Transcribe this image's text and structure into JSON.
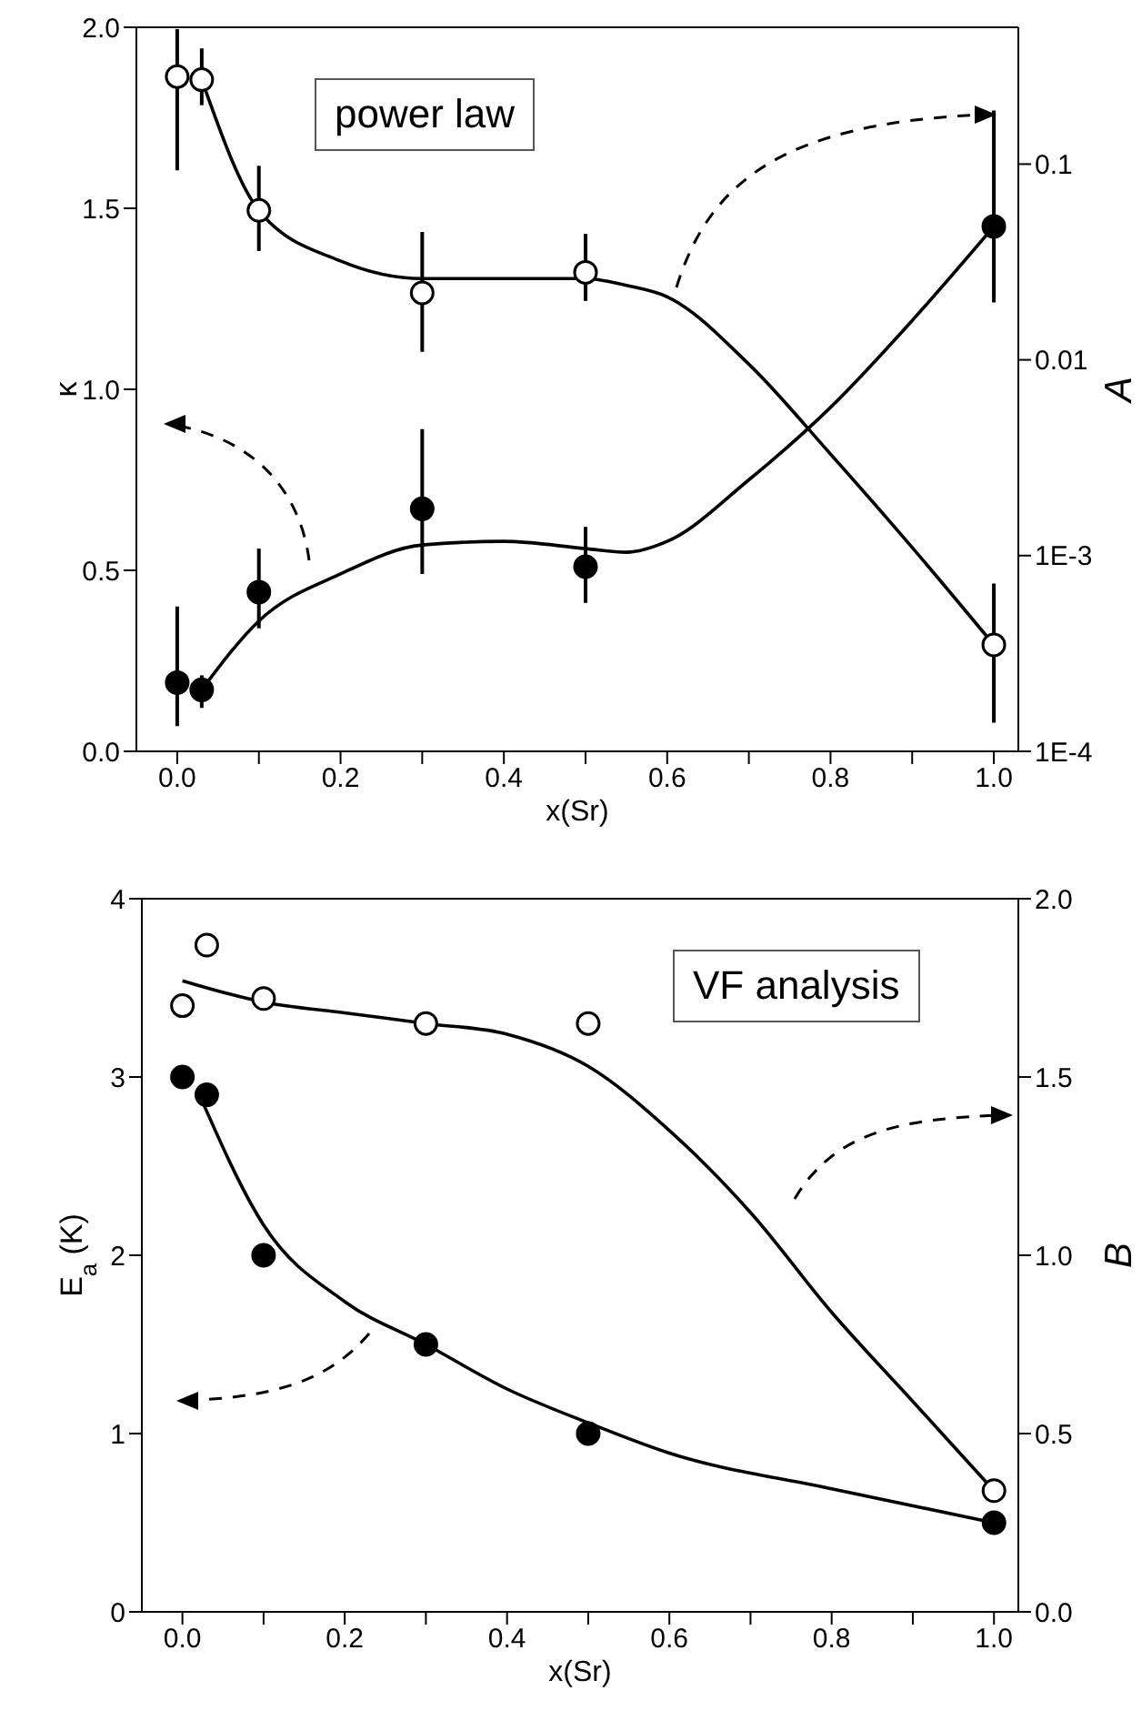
{
  "chart_data": [
    {
      "type": "scatter",
      "xlabel": "x(Sr)",
      "ylabel": "κ",
      "y2label": "A",
      "log": "y2",
      "annotations": [
        "power law"
      ],
      "xlim": [
        -0.05,
        1.03
      ],
      "xticks": [
        {
          "value": 0,
          "label": "0.0"
        },
        {
          "value": 0.1,
          "label": null
        },
        {
          "value": 0.2,
          "label": "0.2"
        },
        {
          "value": 0.3,
          "label": null
        },
        {
          "value": 0.4,
          "label": "0.4"
        },
        {
          "value": 0.5,
          "label": null
        },
        {
          "value": 0.6,
          "label": "0.6"
        },
        {
          "value": 0.7,
          "label": null
        },
        {
          "value": 0.8,
          "label": "0.8"
        },
        {
          "value": 0.9,
          "label": null
        },
        {
          "value": 1,
          "label": "1.0"
        }
      ],
      "ylim": [
        0,
        2
      ],
      "yticks": [
        {
          "value": 0,
          "label": "0.0"
        },
        {
          "value": 0.5,
          "label": "0.5"
        },
        {
          "value": 1,
          "label": "1.0"
        },
        {
          "value": 1.5,
          "label": "1.5"
        },
        {
          "value": 2,
          "label": "2.0"
        }
      ],
      "y2lim": [
        0.0001,
        0.5
      ],
      "y2ticks": [
        {
          "value": 0.0001,
          "label": "1E-4"
        },
        {
          "value": 0.001,
          "label": "1E-3"
        },
        0.01,
        0.1
      ],
      "series": [
        {
          "color": "#000000",
          "marker": "circle",
          "x": [
            0,
            0.03,
            0.1,
            0.3,
            0.5,
            1
          ],
          "values": [
            0.19,
            0.17,
            0.44,
            0.67,
            0.51,
            1.45
          ],
          "errors": [
            [
              0.07,
              0.4
            ],
            [
              0.12,
              0.21
            ],
            [
              0.34,
              0.56
            ],
            [
              0.49,
              0.89
            ],
            [
              0.41,
              0.62
            ],
            [
              1.24,
              1.77
            ]
          ]
        },
        {
          "color": "#ffffff",
          "marker": "circle",
          "axis": "y2",
          "x": [
            0,
            0.03,
            0.1,
            0.3,
            0.5,
            1
          ],
          "values": [
            0.28,
            0.27,
            0.058,
            0.022,
            0.028,
            0.00035
          ],
          "errors": [
            [
              0.093,
              0.49
            ],
            [
              0.2,
              0.39
            ],
            [
              0.036,
              0.098
            ],
            [
              0.011,
              0.045
            ],
            [
              0.02,
              0.044
            ],
            [
              0.00014,
              0.00072
            ]
          ]
        },
        {
          "type": "line",
          "marker": "none",
          "color": "#000000",
          "x": [
            0.03,
            0.1,
            0.2,
            0.3,
            0.4,
            0.5,
            0.55,
            0.6,
            0.7,
            0.8,
            0.9,
            1
          ],
          "values": [
            0.17,
            0.36,
            0.49,
            0.57,
            0.58,
            0.56,
            0.55,
            0.58,
            0.75,
            0.95,
            1.19,
            1.45
          ]
        },
        {
          "type": "line",
          "marker": "none",
          "color": "#000000",
          "axis": "y2",
          "x": [
            0.03,
            0.1,
            0.2,
            0.3,
            0.5,
            0.55,
            0.6,
            0.7,
            0.8,
            0.9,
            1
          ],
          "values": [
            0.27,
            0.058,
            0.032,
            0.026,
            0.026,
            0.024,
            0.021,
            0.0095,
            0.0033,
            0.0011,
            0.00035
          ]
        }
      ]
    },
    {
      "type": "scatter",
      "xlabel": "x(Sr)",
      "ylabel": "E$_{a}$ (K)",
      "y2label": "B",
      "annotations": [
        "VF analysis"
      ],
      "xlim": [
        -0.05,
        1.03
      ],
      "xticks": [
        {
          "value": 0,
          "label": "0.0"
        },
        {
          "value": 0.1,
          "label": null
        },
        {
          "value": 0.2,
          "label": "0.2"
        },
        {
          "value": 0.3,
          "label": null
        },
        {
          "value": 0.4,
          "label": "0.4"
        },
        {
          "value": 0.5,
          "label": null
        },
        {
          "value": 0.6,
          "label": "0.6"
        },
        {
          "value": 0.7,
          "label": null
        },
        {
          "value": 0.8,
          "label": "0.8"
        },
        {
          "value": 0.9,
          "label": null
        },
        {
          "value": 1,
          "label": "1.0"
        }
      ],
      "ylim": [
        0,
        4
      ],
      "yticks": [
        0,
        1,
        2,
        3,
        4
      ],
      "y2lim": [
        0,
        2
      ],
      "y2ticks": [
        {
          "value": 0,
          "label": "0.0"
        },
        {
          "value": 0.5,
          "label": "0.5"
        },
        {
          "value": 1,
          "label": "1.0"
        },
        {
          "value": 1.5,
          "label": "1.5"
        },
        {
          "value": 2,
          "label": "2.0"
        }
      ],
      "series": [
        {
          "color": "#000000",
          "marker": "circle",
          "x": [
            0,
            0.03,
            0.1,
            0.3,
            0.5,
            1
          ],
          "values": [
            3.0,
            2.9,
            2.0,
            1.5,
            1.0,
            0.5
          ]
        },
        {
          "color": "#ffffff",
          "marker": "circle",
          "axis": "y2",
          "x": [
            0,
            0.03,
            0.1,
            0.3,
            0.5,
            1
          ],
          "values": [
            1.7,
            1.87,
            1.72,
            1.65,
            1.65,
            0.34
          ]
        },
        {
          "type": "line",
          "marker": "none",
          "color": "#000000",
          "x": [
            0.02,
            0.1,
            0.2,
            0.3,
            0.4,
            0.5,
            0.6,
            0.8,
            1
          ],
          "values": [
            2.91,
            2.17,
            1.74,
            1.5,
            1.25,
            1.06,
            0.89,
            0.69,
            0.5
          ]
        },
        {
          "type": "line",
          "marker": "none",
          "color": "#000000",
          "axis": "y2",
          "x": [
            0,
            0.1,
            0.2,
            0.3,
            0.4,
            0.5,
            0.6,
            0.7,
            0.8,
            0.9,
            1
          ],
          "values": [
            1.77,
            1.71,
            1.68,
            1.65,
            1.62,
            1.53,
            1.35,
            1.12,
            0.84,
            0.59,
            0.34
          ]
        }
      ]
    }
  ]
}
